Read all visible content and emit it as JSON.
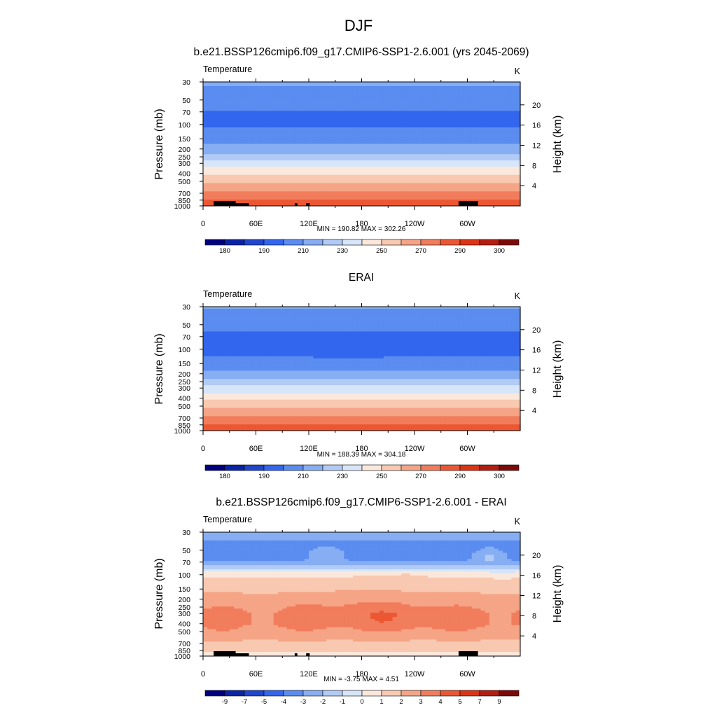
{
  "title": "DJF",
  "colors": {
    "abs_scale": [
      "#00007f",
      "#0a24a6",
      "#1f46cc",
      "#3366ee",
      "#5b8cf0",
      "#87aef2",
      "#b1cbf6",
      "#d6e5fa",
      "#fbe8dc",
      "#f8c9b0",
      "#f5a486",
      "#f17d5c",
      "#ec5733",
      "#dc3515",
      "#b41e10",
      "#7d0a08"
    ],
    "diff_scale": [
      "#00007f",
      "#0a24a6",
      "#1f46cc",
      "#3366ee",
      "#5b8cf0",
      "#87aef2",
      "#b1cbf6",
      "#d6e5fa",
      "#fbe8dc",
      "#f8c9b0",
      "#f5a486",
      "#f17d5c",
      "#ec5733",
      "#dc3515",
      "#b41e10",
      "#7d0a08"
    ]
  },
  "chart_data": [
    {
      "type": "heatmap",
      "title": "b.e21.BSSP126cmip6.f09_g17.CMIP6-SSP1-2.6.001 (yrs 2045-2069)",
      "left_label": "Temperature",
      "units": "K",
      "ylabel": "Pressure (mb)",
      "y2label": "Height (km)",
      "x_ticks": [
        "0",
        "60E",
        "120E",
        "180",
        "120W",
        "60W"
      ],
      "x_tick_lons": [
        0,
        60,
        120,
        180,
        240,
        300
      ],
      "xlim": [
        0,
        360
      ],
      "y_ticks": [
        "30",
        "50",
        "70",
        "100",
        "150",
        "200",
        "250",
        "300",
        "400",
        "500",
        "700",
        "850",
        "1000"
      ],
      "y_tick_p": [
        30,
        50,
        70,
        100,
        150,
        200,
        250,
        300,
        400,
        500,
        700,
        850,
        1000
      ],
      "ylim": [
        30,
        1000
      ],
      "y_scale": "log",
      "height_ticks": [
        "4",
        "8",
        "12",
        "16",
        "20"
      ],
      "height_tick_km": [
        4,
        8,
        12,
        16,
        20
      ],
      "summary": "MIN = 190.82  MAX = 302.26",
      "min": 190.82,
      "max": 302.26,
      "colorbar_labels": [
        "180",
        "190",
        "210",
        "230",
        "250",
        "270",
        "290",
        "300"
      ],
      "colorbar_label_positions": [
        1,
        3,
        5,
        7,
        9,
        11,
        13,
        15
      ],
      "levels": [
        175,
        180,
        185,
        190,
        200,
        210,
        220,
        230,
        240,
        250,
        260,
        270,
        280,
        290,
        295,
        300,
        305
      ],
      "profile_p": [
        30,
        40,
        50,
        60,
        70,
        85,
        100,
        120,
        150,
        175,
        200,
        250,
        300,
        350,
        400,
        500,
        600,
        700,
        800,
        850,
        925,
        1000
      ],
      "profile_t": [
        212,
        207,
        203,
        201,
        200,
        199,
        199,
        201,
        205,
        210,
        214,
        225,
        234,
        242,
        249,
        258,
        266,
        272,
        278,
        281,
        285,
        288
      ],
      "zonal_mods": []
    },
    {
      "type": "heatmap",
      "title": "ERAI",
      "left_label": "Temperature",
      "units": "K",
      "ylabel": "Pressure (mb)",
      "y2label": "Height (km)",
      "x_ticks": [
        "0",
        "60E",
        "120E",
        "180",
        "120W",
        "60W"
      ],
      "x_tick_lons": [
        0,
        60,
        120,
        180,
        240,
        300
      ],
      "xlim": [
        0,
        360
      ],
      "y_ticks": [
        "30",
        "50",
        "70",
        "100",
        "150",
        "200",
        "250",
        "300",
        "400",
        "500",
        "700",
        "850",
        "1000"
      ],
      "y_tick_p": [
        30,
        50,
        70,
        100,
        150,
        200,
        250,
        300,
        400,
        500,
        700,
        850,
        1000
      ],
      "ylim": [
        30,
        1000
      ],
      "y_scale": "log",
      "height_ticks": [
        "4",
        "8",
        "12",
        "16",
        "20"
      ],
      "height_tick_km": [
        4,
        8,
        12,
        16,
        20
      ],
      "summary": "MIN = 188.39  MAX = 304.18",
      "min": 188.39,
      "max": 304.18,
      "colorbar_labels": [
        "180",
        "190",
        "210",
        "230",
        "250",
        "270",
        "290",
        "300"
      ],
      "colorbar_label_positions": [
        1,
        3,
        5,
        7,
        9,
        11,
        13,
        15
      ],
      "levels": [
        175,
        180,
        185,
        190,
        200,
        210,
        220,
        230,
        240,
        250,
        260,
        270,
        280,
        290,
        295,
        300,
        305
      ],
      "profile_p": [
        30,
        40,
        50,
        60,
        70,
        85,
        100,
        120,
        150,
        175,
        200,
        250,
        300,
        350,
        400,
        500,
        600,
        700,
        800,
        850,
        925,
        1000
      ],
      "profile_t": [
        211,
        206,
        202,
        200,
        199,
        197,
        197,
        199,
        204,
        209,
        213,
        224,
        233,
        241,
        248,
        257,
        265,
        271,
        277,
        280,
        284,
        287
      ],
      "zonal_mods": [
        {
          "lon": 165,
          "p": 100,
          "width_lon": 28,
          "width_logp": 0.05,
          "amp": -3.5
        }
      ]
    },
    {
      "type": "heatmap",
      "title": "b.e21.BSSP126cmip6.f09_g17.CMIP6-SSP1-2.6.001 - ERAI",
      "left_label": "Temperature",
      "units": "K",
      "ylabel": "Pressure (mb)",
      "y2label": "Height (km)",
      "x_ticks": [
        "0",
        "60E",
        "120E",
        "180",
        "120W",
        "60W"
      ],
      "x_tick_lons": [
        0,
        60,
        120,
        180,
        240,
        300
      ],
      "xlim": [
        0,
        360
      ],
      "y_ticks": [
        "30",
        "50",
        "70",
        "100",
        "150",
        "200",
        "250",
        "300",
        "400",
        "500",
        "700",
        "850",
        "1000"
      ],
      "y_tick_p": [
        30,
        50,
        70,
        100,
        150,
        200,
        250,
        300,
        400,
        500,
        700,
        850,
        1000
      ],
      "ylim": [
        30,
        1000
      ],
      "y_scale": "log",
      "height_ticks": [
        "4",
        "8",
        "12",
        "16",
        "20"
      ],
      "height_tick_km": [
        4,
        8,
        12,
        16,
        20
      ],
      "summary": "MIN =  -3.75  MAX =   4.51",
      "min": -3.75,
      "max": 4.51,
      "colorbar_labels": [
        "-9",
        "-7",
        "-5",
        "-4",
        "-3",
        "-2",
        "-1",
        "0",
        "1",
        "2",
        "3",
        "4",
        "5",
        "7",
        "9"
      ],
      "colorbar_label_positions": [
        1,
        2,
        3,
        4,
        5,
        6,
        7,
        8,
        9,
        10,
        11,
        12,
        13,
        14,
        15
      ],
      "levels": [
        -11,
        -9,
        -7,
        -5,
        -4,
        -3,
        -2,
        -1,
        0,
        1,
        2,
        3,
        4,
        5,
        7,
        9,
        11
      ],
      "profile_p": [
        30,
        40,
        50,
        60,
        70,
        80,
        90,
        100,
        120,
        150,
        200,
        250,
        300,
        400,
        500,
        600,
        700,
        800,
        850,
        925,
        1000
      ],
      "profile_t": [
        -2.5,
        -3.1,
        -3.3,
        -3.2,
        -3.0,
        -1.8,
        -0.4,
        0.7,
        1.7,
        1.8,
        2.3,
        2.8,
        3.2,
        3.2,
        2.7,
        2.2,
        1.8,
        1.4,
        1.2,
        0.9,
        0.6
      ],
      "zonal_mods": [
        {
          "lon": 140,
          "p": 56,
          "width_lon": 18,
          "width_logp": 0.07,
          "amp": 0.9
        },
        {
          "lon": 325,
          "p": 60,
          "width_lon": 14,
          "width_logp": 0.08,
          "amp": 1.4
        },
        {
          "lon": 180,
          "p": 280,
          "width_lon": 60,
          "width_logp": 0.2,
          "amp": 0.6
        },
        {
          "lon": 250,
          "p": 330,
          "width_lon": 40,
          "width_logp": 0.15,
          "amp": 0.5
        },
        {
          "lon": 340,
          "p": 110,
          "width_lon": 10,
          "width_logp": 0.06,
          "amp": -0.8
        },
        {
          "lon": 230,
          "p": 108,
          "width_lon": 12,
          "width_logp": 0.05,
          "amp": 0.6
        }
      ]
    }
  ]
}
